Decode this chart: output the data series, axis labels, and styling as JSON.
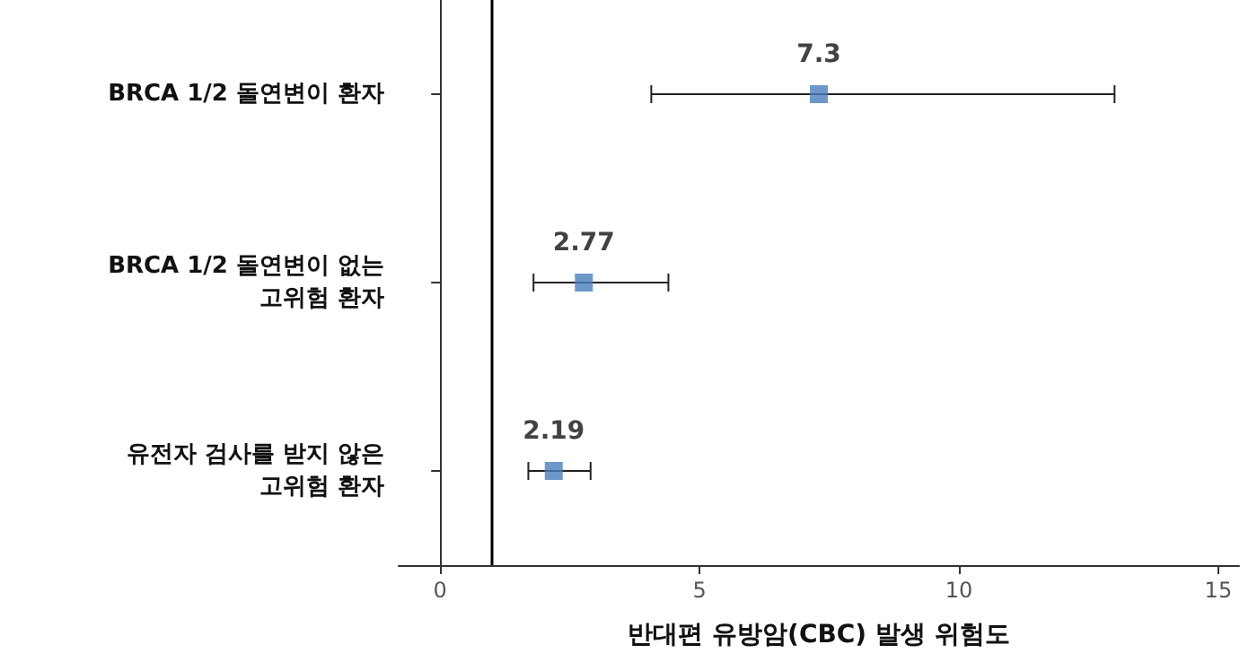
{
  "chart_data": {
    "type": "scatter",
    "orientation": "horizontal",
    "categories": [
      "BRCA 1/2 돌연변이 환자",
      "BRCA 1/2 돌연변이 없는\n고위험 환자",
      "유전자 검사를 받지 않은\n고위험 환자"
    ],
    "values": [
      7.3,
      2.77,
      2.19
    ],
    "errors": [
      [
        4.07,
        13.0
      ],
      [
        1.8,
        4.4
      ],
      [
        1.7,
        2.9
      ]
    ],
    "color": "#4a7ebb",
    "marker": "square",
    "data_labels": true,
    "xlabel": "반대편 유방암(CBC) 발생 위험도",
    "xlim": [
      -0.8,
      15.4
    ],
    "xticks": [
      0,
      5,
      10,
      15
    ],
    "ref_lines": [
      {
        "axis": "x",
        "value": 1,
        "color": "#000000"
      }
    ]
  }
}
